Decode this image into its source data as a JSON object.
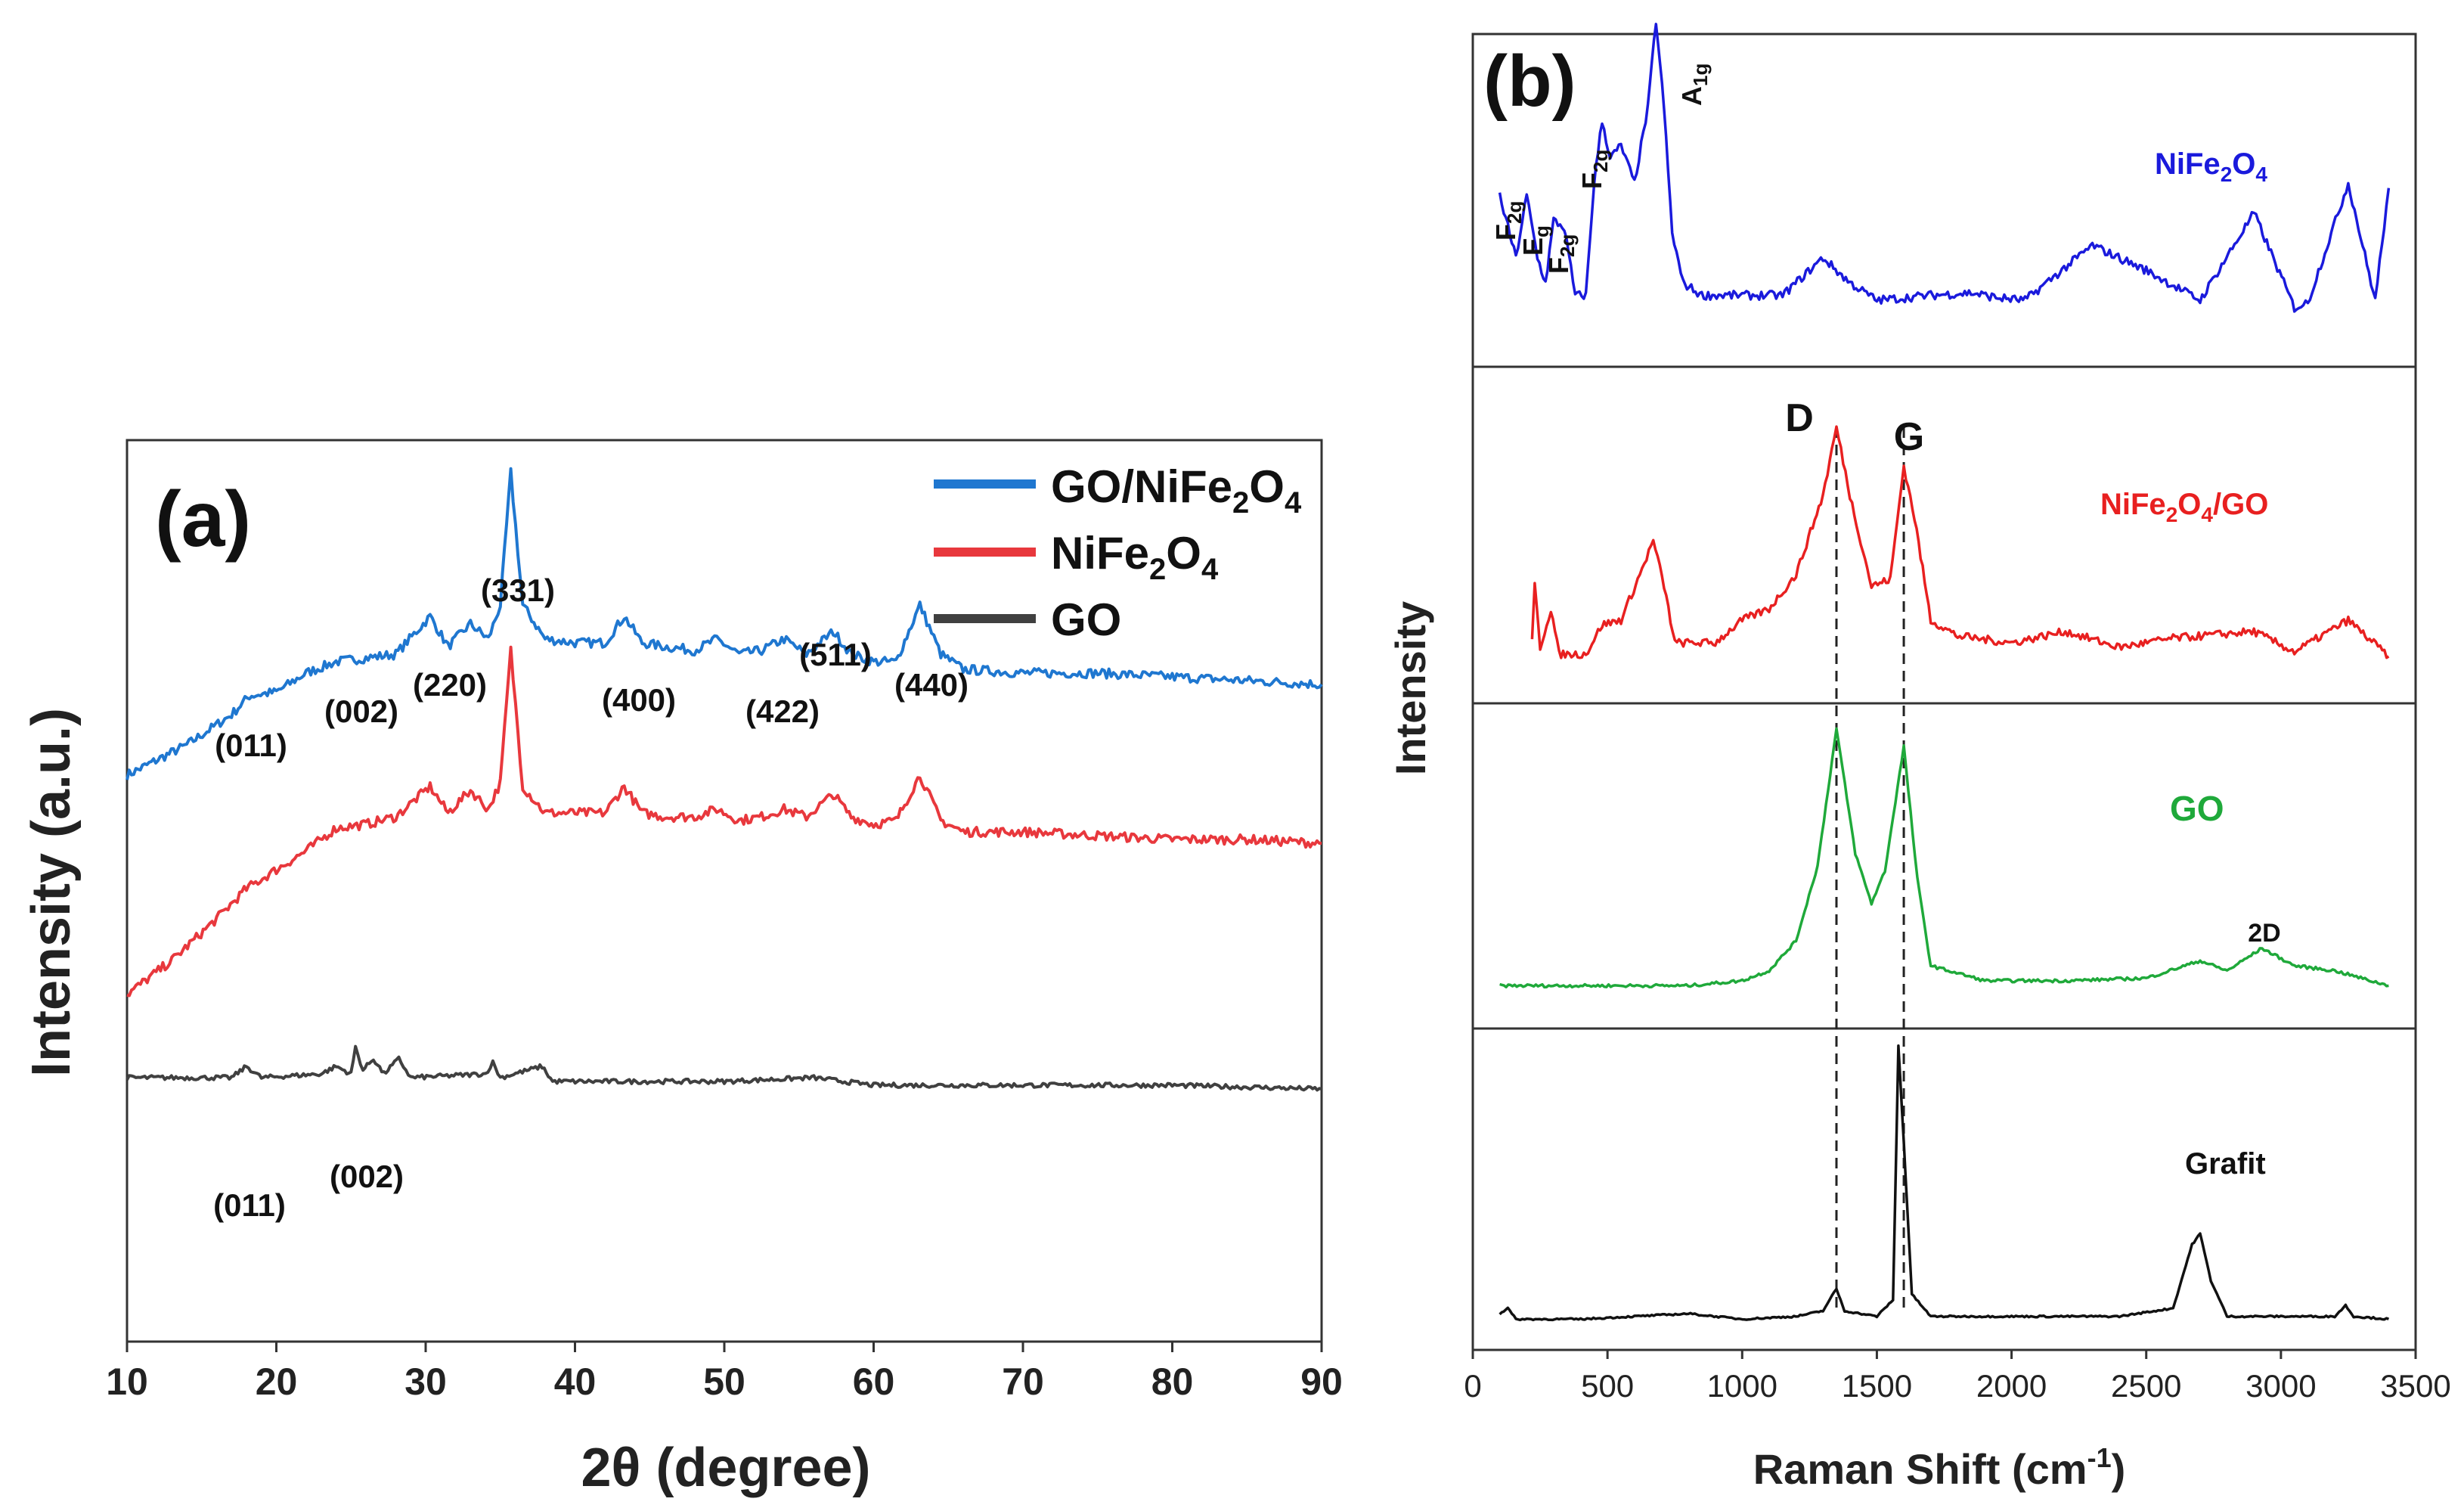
{
  "chart_data": [
    {
      "type": "line",
      "panel_label": "(a)",
      "xlabel": "2θ (degree)",
      "ylabel": "Intensity (a.u.)",
      "xlim": [
        10,
        90
      ],
      "x_ticks": [
        10,
        20,
        30,
        40,
        50,
        60,
        70,
        80,
        90
      ],
      "y_ticks_shown": false,
      "legend_position": "top-right",
      "series": [
        {
          "name": "GO/NiFe₂O₄",
          "label_main": "GO/NiFe",
          "label_sub1": "2",
          "label_mid": "O",
          "label_sub2": "4",
          "color": "#1f77d0",
          "points": [
            [
              10,
              0.0
            ],
            [
              14,
              0.08
            ],
            [
              17,
              0.16
            ],
            [
              18.2,
              0.21
            ],
            [
              20,
              0.22
            ],
            [
              22,
              0.27
            ],
            [
              24,
              0.3
            ],
            [
              26,
              0.31
            ],
            [
              28,
              0.32
            ],
            [
              30.3,
              0.42
            ],
            [
              31.5,
              0.34
            ],
            [
              33,
              0.4
            ],
            [
              34.2,
              0.36
            ],
            [
              35,
              0.45
            ],
            [
              35.7,
              0.8
            ],
            [
              36.5,
              0.45
            ],
            [
              38,
              0.36
            ],
            [
              40,
              0.35
            ],
            [
              42,
              0.35
            ],
            [
              43.3,
              0.42
            ],
            [
              44.5,
              0.35
            ],
            [
              46,
              0.34
            ],
            [
              48,
              0.33
            ],
            [
              49.5,
              0.36
            ],
            [
              51,
              0.32
            ],
            [
              52.5,
              0.33
            ],
            [
              54,
              0.36
            ],
            [
              55.5,
              0.32
            ],
            [
              57.3,
              0.38
            ],
            [
              58.5,
              0.32
            ],
            [
              60,
              0.3
            ],
            [
              61.5,
              0.3
            ],
            [
              63.1,
              0.45
            ],
            [
              64.5,
              0.32
            ],
            [
              66,
              0.28
            ],
            [
              70,
              0.27
            ],
            [
              75,
              0.27
            ],
            [
              80,
              0.26
            ],
            [
              85,
              0.25
            ],
            [
              90,
              0.24
            ]
          ]
        },
        {
          "name": "NiFe₂O₄",
          "label_main": "NiFe",
          "label_sub1": "2",
          "label_mid": "O",
          "label_sub2": "4",
          "color": "#e8383d",
          "points": [
            [
              10,
              -0.58
            ],
            [
              13,
              -0.49
            ],
            [
              16,
              -0.38
            ],
            [
              18,
              -0.3
            ],
            [
              20,
              -0.25
            ],
            [
              22,
              -0.2
            ],
            [
              24,
              -0.14
            ],
            [
              26,
              -0.13
            ],
            [
              28,
              -0.11
            ],
            [
              30.3,
              -0.03
            ],
            [
              31.5,
              -0.1
            ],
            [
              33,
              -0.04
            ],
            [
              34.2,
              -0.09
            ],
            [
              35,
              -0.02
            ],
            [
              35.7,
              0.33
            ],
            [
              36.5,
              -0.03
            ],
            [
              38,
              -0.1
            ],
            [
              40,
              -0.1
            ],
            [
              42,
              -0.1
            ],
            [
              43.3,
              -0.03
            ],
            [
              44.5,
              -0.1
            ],
            [
              46,
              -0.11
            ],
            [
              48,
              -0.11
            ],
            [
              49.5,
              -0.09
            ],
            [
              51,
              -0.12
            ],
            [
              52.5,
              -0.11
            ],
            [
              54,
              -0.09
            ],
            [
              55.5,
              -0.11
            ],
            [
              57.3,
              -0.05
            ],
            [
              58.5,
              -0.11
            ],
            [
              60,
              -0.13
            ],
            [
              61.5,
              -0.12
            ],
            [
              63.1,
              0.0
            ],
            [
              64.5,
              -0.12
            ],
            [
              66,
              -0.15
            ],
            [
              70,
              -0.15
            ],
            [
              75,
              -0.16
            ],
            [
              80,
              -0.17
            ],
            [
              85,
              -0.17
            ],
            [
              90,
              -0.18
            ]
          ]
        },
        {
          "name": "GO",
          "label_main": "GO",
          "label_sub1": "",
          "label_mid": "",
          "label_sub2": "",
          "color": "#404040",
          "points": [
            [
              10,
              -0.8
            ],
            [
              17,
              -0.8
            ],
            [
              18,
              -0.77
            ],
            [
              19,
              -0.8
            ],
            [
              23,
              -0.79
            ],
            [
              24,
              -0.77
            ],
            [
              25,
              -0.79
            ],
            [
              25.3,
              -0.72
            ],
            [
              25.8,
              -0.78
            ],
            [
              26.5,
              -0.75
            ],
            [
              27.2,
              -0.79
            ],
            [
              28.2,
              -0.75
            ],
            [
              29,
              -0.8
            ],
            [
              34,
              -0.79
            ],
            [
              34.5,
              -0.76
            ],
            [
              35,
              -0.8
            ],
            [
              37.8,
              -0.77
            ],
            [
              38.5,
              -0.81
            ],
            [
              45,
              -0.81
            ],
            [
              50,
              -0.81
            ],
            [
              56,
              -0.8
            ],
            [
              60,
              -0.82
            ],
            [
              70,
              -0.82
            ],
            [
              80,
              -0.82
            ],
            [
              90,
              -0.83
            ]
          ]
        }
      ],
      "annotations_gonife": [
        "(011)",
        "(002)",
        "(220)",
        "(331)",
        "(400)",
        "(422)",
        "(511)",
        "(440)"
      ],
      "annotations_go": [
        "(011)",
        "(002)"
      ]
    },
    {
      "type": "line",
      "panel_label": "(b)",
      "xlabel_main": "Raman Shift (cm",
      "xlabel_sup": "-1",
      "xlabel_end": ")",
      "ylabel": "Intensity",
      "xlim": [
        0,
        3500
      ],
      "x_ticks": [
        0,
        500,
        1000,
        1500,
        2000,
        2500,
        3000,
        3500
      ],
      "stacked_panels": [
        "NiFe₂O₄",
        "NiFe₂O₄/GO",
        "GO",
        "Grafit"
      ],
      "series": [
        {
          "name": "NiFe₂O₄",
          "label_main": "NiFe",
          "label_sub1": "2",
          "label_mid": "O",
          "label_sub2": "4",
          "label_end": "",
          "color": "#1a1adc",
          "points": [
            [
              100,
              0.55
            ],
            [
              160,
              0.3
            ],
            [
              200,
              0.55
            ],
            [
              240,
              0.3
            ],
            [
              270,
              0.2
            ],
            [
              300,
              0.45
            ],
            [
              340,
              0.42
            ],
            [
              380,
              0.15
            ],
            [
              420,
              0.15
            ],
            [
              450,
              0.6
            ],
            [
              480,
              0.85
            ],
            [
              510,
              0.7
            ],
            [
              550,
              0.75
            ],
            [
              600,
              0.6
            ],
            [
              650,
              0.9
            ],
            [
              680,
              1.25
            ],
            [
              710,
              0.9
            ],
            [
              740,
              0.4
            ],
            [
              780,
              0.2
            ],
            [
              850,
              0.15
            ],
            [
              1000,
              0.15
            ],
            [
              1150,
              0.15
            ],
            [
              1300,
              0.3
            ],
            [
              1400,
              0.2
            ],
            [
              1500,
              0.13
            ],
            [
              1700,
              0.15
            ],
            [
              1850,
              0.16
            ],
            [
              1950,
              0.14
            ],
            [
              2050,
              0.13
            ],
            [
              2300,
              0.35
            ],
            [
              2500,
              0.25
            ],
            [
              2700,
              0.13
            ],
            [
              2900,
              0.48
            ],
            [
              3050,
              0.1
            ],
            [
              3100,
              0.12
            ],
            [
              3250,
              0.6
            ],
            [
              3350,
              0.13
            ],
            [
              3400,
              0.58
            ]
          ]
        },
        {
          "name": "NiFe₂O₄/GO",
          "label_main": "NiFe",
          "label_sub1": "2",
          "label_mid": "O",
          "label_sub2": "4",
          "label_end": "/GO",
          "color": "#e82020",
          "points": [
            [
              220,
              0.1
            ],
            [
              230,
              0.35
            ],
            [
              250,
              0.08
            ],
            [
              290,
              0.25
            ],
            [
              320,
              0.05
            ],
            [
              420,
              0.05
            ],
            [
              480,
              0.18
            ],
            [
              550,
              0.2
            ],
            [
              620,
              0.4
            ],
            [
              670,
              0.55
            ],
            [
              710,
              0.35
            ],
            [
              750,
              0.1
            ],
            [
              900,
              0.1
            ],
            [
              1000,
              0.2
            ],
            [
              1100,
              0.25
            ],
            [
              1200,
              0.4
            ],
            [
              1300,
              0.75
            ],
            [
              1350,
              1.05
            ],
            [
              1400,
              0.75
            ],
            [
              1480,
              0.35
            ],
            [
              1550,
              0.38
            ],
            [
              1600,
              0.88
            ],
            [
              1640,
              0.65
            ],
            [
              1700,
              0.2
            ],
            [
              1800,
              0.13
            ],
            [
              2000,
              0.1
            ],
            [
              2200,
              0.15
            ],
            [
              2400,
              0.08
            ],
            [
              2600,
              0.12
            ],
            [
              2900,
              0.15
            ],
            [
              3050,
              0.06
            ],
            [
              3250,
              0.2
            ],
            [
              3400,
              0.04
            ]
          ]
        },
        {
          "name": "GO",
          "label_main": "GO",
          "label_sub1": "",
          "label_mid": "",
          "label_sub2": "",
          "label_end": "",
          "color": "#1fa93a",
          "points": [
            [
              100,
              0.02
            ],
            [
              400,
              0.02
            ],
            [
              600,
              0.02
            ],
            [
              800,
              0.02
            ],
            [
              1000,
              0.04
            ],
            [
              1100,
              0.08
            ],
            [
              1200,
              0.2
            ],
            [
              1280,
              0.5
            ],
            [
              1350,
              1.05
            ],
            [
              1420,
              0.55
            ],
            [
              1480,
              0.35
            ],
            [
              1530,
              0.48
            ],
            [
              1600,
              0.98
            ],
            [
              1650,
              0.45
            ],
            [
              1700,
              0.1
            ],
            [
              1900,
              0.04
            ],
            [
              2200,
              0.04
            ],
            [
              2500,
              0.05
            ],
            [
              2700,
              0.12
            ],
            [
              2800,
              0.08
            ],
            [
              2930,
              0.17
            ],
            [
              3050,
              0.1
            ],
            [
              3200,
              0.08
            ],
            [
              3400,
              0.02
            ]
          ]
        },
        {
          "name": "Grafit",
          "label_main": "Grafit",
          "label_sub1": "",
          "label_mid": "",
          "label_sub2": "",
          "label_end": "",
          "color": "#111111",
          "points": [
            [
              100,
              0.03
            ],
            [
              130,
              0.05
            ],
            [
              160,
              0.01
            ],
            [
              400,
              0.01
            ],
            [
              800,
              0.03
            ],
            [
              1000,
              0.01
            ],
            [
              1200,
              0.02
            ],
            [
              1300,
              0.04
            ],
            [
              1350,
              0.12
            ],
            [
              1380,
              0.04
            ],
            [
              1500,
              0.02
            ],
            [
              1560,
              0.08
            ],
            [
              1580,
              1.0
            ],
            [
              1600,
              0.65
            ],
            [
              1630,
              0.1
            ],
            [
              1700,
              0.02
            ],
            [
              2000,
              0.02
            ],
            [
              2400,
              0.02
            ],
            [
              2600,
              0.05
            ],
            [
              2670,
              0.28
            ],
            [
              2700,
              0.32
            ],
            [
              2740,
              0.15
            ],
            [
              2800,
              0.02
            ],
            [
              3200,
              0.02
            ],
            [
              3240,
              0.06
            ],
            [
              3270,
              0.02
            ],
            [
              3400,
              0.01
            ]
          ]
        }
      ],
      "ni_peaks": [
        {
          "main": "F",
          "sub": "2g"
        },
        {
          "main": "E",
          "sub": "g"
        },
        {
          "main": "F",
          "sub": "2g"
        },
        {
          "main": "F",
          "sub": "2g"
        },
        {
          "main": "A",
          "sub": "1g"
        }
      ],
      "peak_labels": {
        "d": "D",
        "g": "G",
        "two_d": "2D"
      },
      "reference_lines_at": [
        1350,
        1600
      ]
    }
  ]
}
